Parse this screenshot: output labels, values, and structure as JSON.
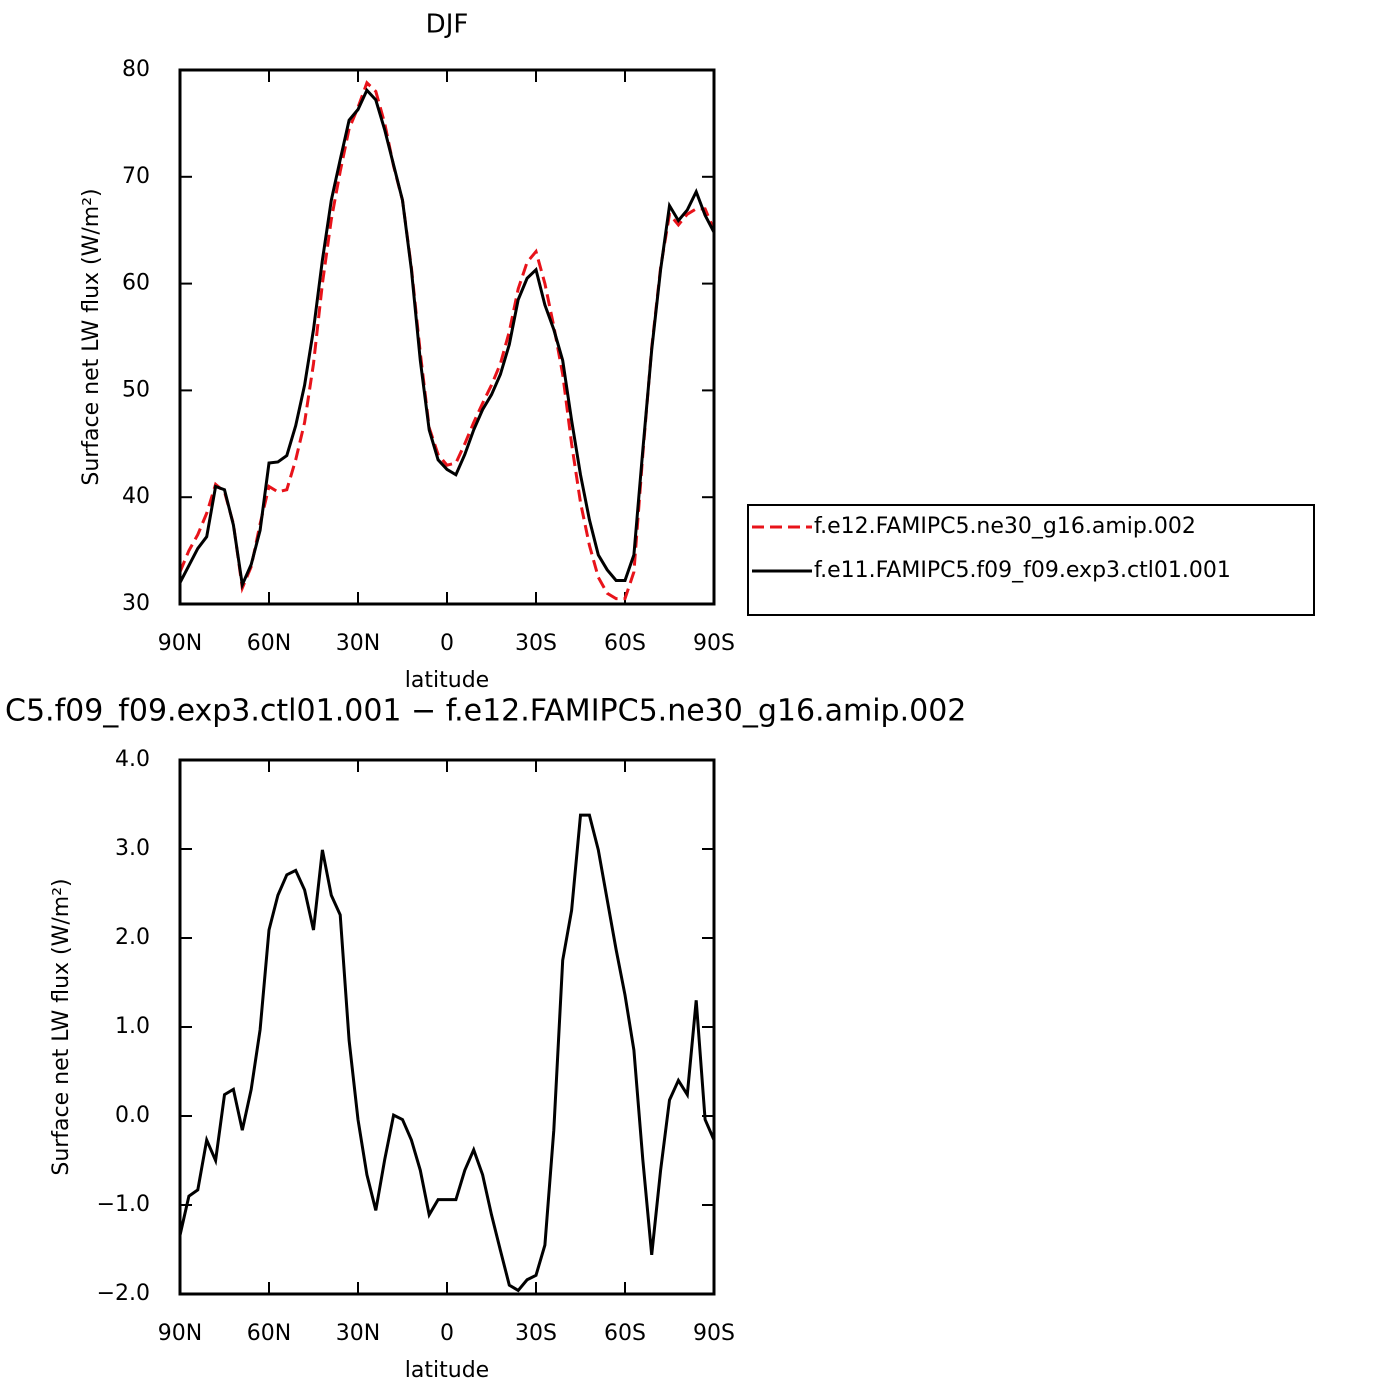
{
  "chart_data": [
    {
      "type": "line",
      "title": "DJF",
      "xlabel": "latitude",
      "ylabel": "Surface net LW flux (W/m²)",
      "x": [
        90,
        87,
        84,
        81,
        78,
        75,
        72,
        69,
        66,
        63,
        60,
        57,
        54,
        51,
        48,
        45,
        42,
        39,
        36,
        33,
        30,
        27,
        24,
        21,
        18,
        15,
        12,
        9,
        6,
        3,
        0,
        -3,
        -6,
        -9,
        -12,
        -15,
        -18,
        -21,
        -24,
        -27,
        -30,
        -33,
        -36,
        -39,
        -42,
        -45,
        -48,
        -51,
        -54,
        -57,
        -60,
        -63,
        -66,
        -69,
        -72,
        -75,
        -78,
        -81,
        -84,
        -87,
        -90
      ],
      "series": [
        {
          "name": "f.e12.FAMIPC5.ne30_g16.amip.002",
          "color": "#e8131a",
          "style": "dashed",
          "values": [
            33,
            35,
            36.5,
            38.5,
            41.2,
            40.5,
            37.5,
            31.5,
            33.5,
            37.5,
            41,
            40.5,
            40.7,
            43.5,
            47,
            52.5,
            60,
            66,
            70.5,
            74.5,
            76.5,
            78.8,
            78,
            75,
            71,
            67.8,
            61.5,
            53.5,
            46.5,
            44,
            43,
            43.2,
            45,
            47,
            48.8,
            50.5,
            52.5,
            55.5,
            59.5,
            62,
            63,
            60,
            56,
            51.5,
            45,
            39.5,
            35.5,
            32.5,
            31,
            30.5,
            30.5,
            33,
            44,
            54,
            61.5,
            66.5,
            65.5,
            66.5,
            67,
            67,
            65
          ]
        },
        {
          "name": "f.e11.FAMIPC5.f09_f09.exp3.ctl01.001",
          "color": "#000000",
          "style": "solid",
          "values": [
            32,
            33.6,
            35.2,
            36.3,
            41,
            40.7,
            37.4,
            31.8,
            33.7,
            36.9,
            43.2,
            43.3,
            43.9,
            46.7,
            50.5,
            55.7,
            62.2,
            67.8,
            71.6,
            75.3,
            76.3,
            78.1,
            77.2,
            74.4,
            71.1,
            67.8,
            61.3,
            52.8,
            46.3,
            43.5,
            42.6,
            42.1,
            44,
            46.3,
            48.2,
            49.6,
            51.5,
            54.3,
            58.5,
            60.5,
            61.3,
            58,
            55.7,
            52.8,
            47.2,
            42.1,
            37.9,
            34.6,
            33.2,
            32.2,
            32.2,
            34.6,
            44.4,
            53.8,
            61.3,
            67.3,
            65.9,
            66.9,
            68.6,
            66.4,
            64.8
          ]
        }
      ],
      "xlim": [
        90,
        -90
      ],
      "xticks": [
        {
          "value": 90,
          "label": "90N"
        },
        {
          "value": 60,
          "label": "60N"
        },
        {
          "value": 30,
          "label": "30N"
        },
        0,
        {
          "value": -30,
          "label": "30S"
        },
        {
          "value": -60,
          "label": "60S"
        },
        {
          "value": -90,
          "label": "90S"
        }
      ],
      "ylim": [
        30,
        80
      ],
      "yticks": [
        30,
        40,
        50,
        60,
        70,
        80
      ],
      "legend": "right"
    },
    {
      "type": "line",
      "title": "C5.f09_f09.exp3.ctl01.001 − f.e12.FAMIPC5.ne30_g16.amip.002",
      "xlabel": "latitude",
      "ylabel": "Surface net LW flux (W/m²)",
      "x": [
        90,
        87,
        84,
        81,
        78,
        75,
        72,
        69,
        66,
        63,
        60,
        57,
        54,
        51,
        48,
        45,
        42,
        39,
        36,
        33,
        30,
        27,
        24,
        21,
        18,
        15,
        12,
        9,
        6,
        3,
        0,
        -3,
        -6,
        -9,
        -12,
        -15,
        -18,
        -21,
        -24,
        -27,
        -30,
        -33,
        -36,
        -39,
        -42,
        -45,
        -48,
        -51,
        -54,
        -57,
        -60,
        -63,
        -66,
        -69,
        -72,
        -75,
        -78,
        -81,
        -84,
        -87,
        -90
      ],
      "series": [
        {
          "color": "#000000",
          "style": "solid",
          "values": [
            -1.34,
            -0.9,
            -0.83,
            -0.27,
            -0.5,
            0.24,
            0.3,
            -0.16,
            0.3,
            0.97,
            2.09,
            2.48,
            2.71,
            2.76,
            2.54,
            2.09,
            2.99,
            2.48,
            2.26,
            0.85,
            -0.04,
            -0.66,
            -1.06,
            -0.49,
            0.01,
            -0.04,
            -0.27,
            -0.61,
            -1.11,
            -0.94,
            -0.94,
            -0.94,
            -0.61,
            -0.38,
            -0.66,
            -1.11,
            -1.51,
            -1.9,
            -1.96,
            -1.84,
            -1.79,
            -1.45,
            -0.16,
            1.75,
            2.31,
            3.38,
            3.38,
            2.99,
            2.43,
            1.87,
            1.36,
            0.74,
            -0.49,
            -1.56,
            -0.61,
            0.18,
            0.4,
            0.24,
            1.3,
            -0.04,
            -0.27
          ]
        }
      ],
      "xlim": [
        90,
        -90
      ],
      "xticks": [
        {
          "value": 90,
          "label": "90N"
        },
        {
          "value": 60,
          "label": "60N"
        },
        {
          "value": 30,
          "label": "30N"
        },
        0,
        {
          "value": -30,
          "label": "30S"
        },
        {
          "value": -60,
          "label": "60S"
        },
        {
          "value": -90,
          "label": "90S"
        }
      ],
      "ylim": [
        -2,
        4
      ],
      "yticks": [
        {
          "value": -2,
          "label": "−2.0"
        },
        {
          "value": -1,
          "label": "−1.0"
        },
        {
          "value": 0,
          "label": "0.0"
        },
        {
          "value": 1,
          "label": "1.0"
        },
        {
          "value": 2,
          "label": "2.0"
        },
        {
          "value": 3,
          "label": "3.0"
        },
        {
          "value": 4,
          "label": "4.0"
        }
      ]
    }
  ]
}
